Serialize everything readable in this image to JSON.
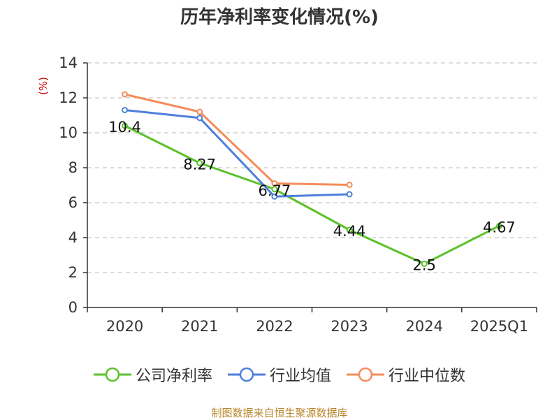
{
  "chart_data": {
    "type": "line",
    "title": "历年净利率变化情况(%)",
    "ylabel": "(%)",
    "ylim": [
      0,
      14
    ],
    "y_ticks": [
      "0",
      "2",
      "4",
      "6",
      "8",
      "10",
      "12",
      "14"
    ],
    "categories": [
      "2020",
      "2021",
      "2022",
      "2023",
      "2024",
      "2025Q1"
    ],
    "grid": true,
    "legend_position": "bottom",
    "series": [
      {
        "name": "公司净利率",
        "color": "#5cc12b",
        "values": [
          10.4,
          8.27,
          6.77,
          4.44,
          2.5,
          4.67
        ],
        "labels": [
          "10.4",
          "8.27",
          "6.77",
          "4.44",
          "2.5",
          "4.67"
        ]
      },
      {
        "name": "行业均值",
        "color": "#4e7fdb",
        "values": [
          11.3,
          10.85,
          6.35,
          6.48,
          null,
          null
        ]
      },
      {
        "name": "行业中位数",
        "color": "#f48c5a",
        "values": [
          12.2,
          11.2,
          7.1,
          7.02,
          null,
          null
        ]
      }
    ]
  },
  "footer": {
    "source": "制图数据来自恒生聚源数据库"
  }
}
